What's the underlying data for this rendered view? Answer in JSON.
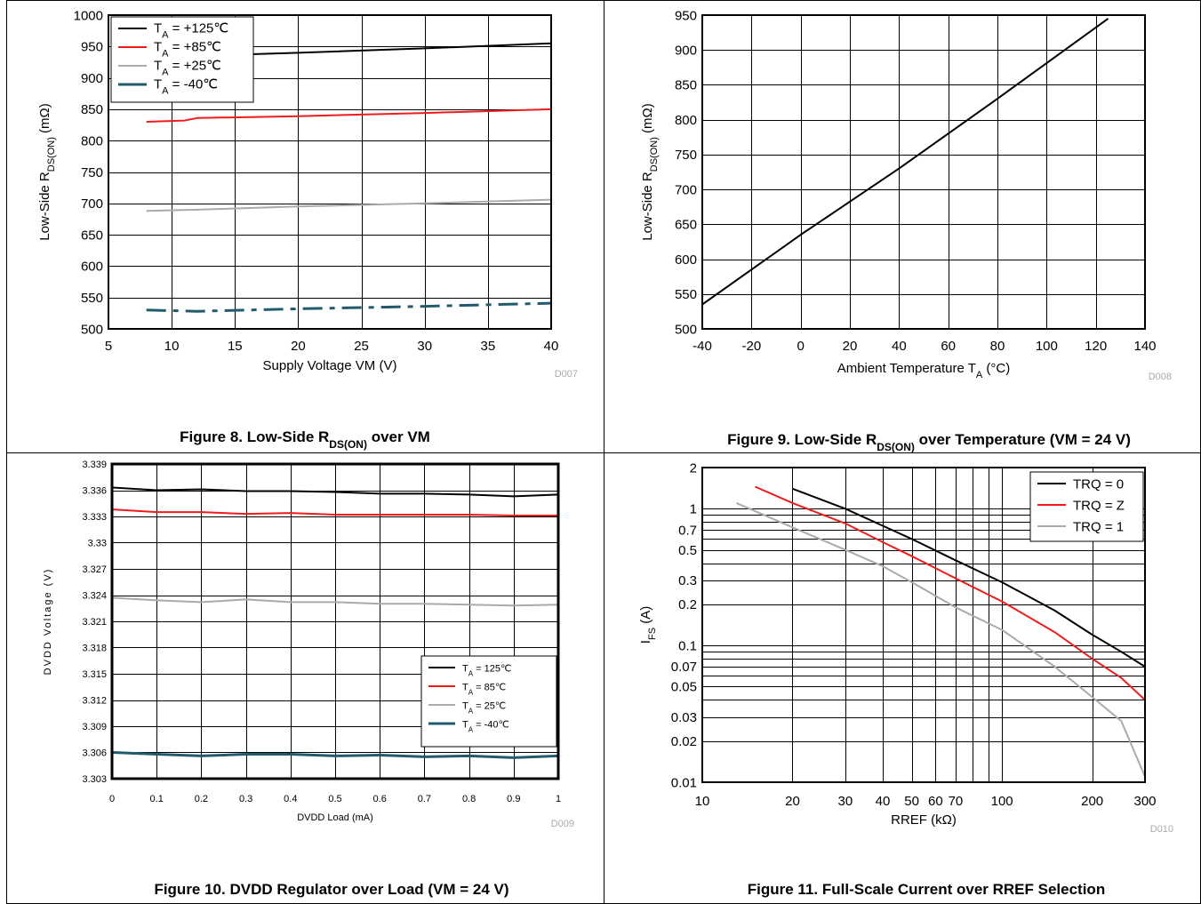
{
  "chart_data": [
    {
      "type": "line",
      "caption": {
        "prefix": "Figure 8. Low-Side R",
        "sub": "DS(ON)",
        "suffix": " over VM"
      },
      "ylabel": {
        "prefix": "Low-Side R",
        "sub": "DS(ON)",
        "suffix": " (mΩ)"
      },
      "xlabel": "Supply Voltage VM (V)",
      "code": "D007",
      "xlim": [
        5,
        40
      ],
      "ylim": [
        500,
        1000
      ],
      "x_ticks": [
        "5",
        "10",
        "15",
        "20",
        "25",
        "30",
        "35",
        "40"
      ],
      "y_ticks": [
        "500",
        "550",
        "600",
        "650",
        "700",
        "750",
        "800",
        "850",
        "900",
        "950",
        "1000"
      ],
      "grid": true,
      "legend_position": "top-left",
      "series": [
        {
          "name": "T_A = +125℃",
          "label_prefix": "T",
          "label_sub": "A",
          "label_suffix": " = +125℃",
          "color": "#000000",
          "x": [
            8,
            12,
            20,
            30,
            40
          ],
          "y": [
            930,
            935,
            940,
            947,
            955
          ]
        },
        {
          "name": "T_A = +85℃",
          "label_prefix": "T",
          "label_sub": "A",
          "label_suffix": " = +85℃",
          "color": "#ee1c1c",
          "x": [
            8,
            11,
            12,
            20,
            30,
            40
          ],
          "y": [
            830,
            832,
            836,
            839,
            844,
            850
          ]
        },
        {
          "name": "T_A = +25℃",
          "label_prefix": "T",
          "label_sub": "A",
          "label_suffix": " = +25℃",
          "color": "#aaaaaa",
          "x": [
            8,
            12,
            20,
            30,
            40
          ],
          "y": [
            688,
            690,
            695,
            700,
            706
          ]
        },
        {
          "name": "T_A = -40℃",
          "label_prefix": "T",
          "label_sub": "A",
          "label_suffix": " = -40℃",
          "color": "#215a6d",
          "dash": "dashdot",
          "x": [
            8,
            12,
            20,
            30,
            40
          ],
          "y": [
            530,
            528,
            532,
            536,
            541
          ]
        }
      ]
    },
    {
      "type": "line",
      "caption": {
        "prefix": "Figure 9. Low-Side R",
        "sub": "DS(ON)",
        "suffix": " over Temperature (VM = 24 V)"
      },
      "ylabel": {
        "prefix": "Low-Side R",
        "sub": "DS(ON)",
        "suffix": " (mΩ)"
      },
      "xlabel": {
        "prefix": "Ambient Temperature T",
        "sub": "A",
        "suffix": " (°C)"
      },
      "code": "D008",
      "xlim": [
        -40,
        140
      ],
      "ylim": [
        500,
        950
      ],
      "x_ticks": [
        "-40",
        "-20",
        "0",
        "20",
        "40",
        "60",
        "80",
        "100",
        "120",
        "140"
      ],
      "y_ticks": [
        "500",
        "550",
        "600",
        "650",
        "700",
        "750",
        "800",
        "850",
        "900",
        "950"
      ],
      "grid": true,
      "series": [
        {
          "color": "#000000",
          "x": [
            -40,
            0,
            40,
            80,
            125
          ],
          "y": [
            535,
            635,
            730,
            830,
            945
          ]
        }
      ]
    },
    {
      "type": "line",
      "caption": {
        "text": "Figure 10. DVDD Regulator over Load (VM = 24 V)"
      },
      "ylabel": "DVDD Voltage (V)",
      "xlabel": "DVDD Load (mA)",
      "code": "D009",
      "xlim": [
        0,
        1
      ],
      "ylim": [
        3.303,
        3.339
      ],
      "x_ticks": [
        "0",
        "0.1",
        "0.2",
        "0.3",
        "0.4",
        "0.5",
        "0.6",
        "0.7",
        "0.8",
        "0.9",
        "1"
      ],
      "y_ticks": [
        "3.303",
        "3.306",
        "3.309",
        "3.312",
        "3.315",
        "3.318",
        "3.321",
        "3.324",
        "3.327",
        "3.33",
        "3.333",
        "3.336",
        "3.339"
      ],
      "grid": true,
      "legend_position": "bottom-right",
      "series": [
        {
          "name": "T_A = 125℃",
          "label_prefix": "T",
          "label_sub": "A",
          "label_suffix": " = 125℃",
          "color": "#000000",
          "x": [
            0,
            0.1,
            0.2,
            0.3,
            0.4,
            0.5,
            0.6,
            0.7,
            0.8,
            0.9,
            1
          ],
          "y": [
            3.3363,
            3.336,
            3.3361,
            3.3359,
            3.3359,
            3.3358,
            3.3356,
            3.3356,
            3.3355,
            3.3353,
            3.3355
          ]
        },
        {
          "name": "T_A = 85℃",
          "label_prefix": "T",
          "label_sub": "A",
          "label_suffix": " = 85℃",
          "color": "#ee1c1c",
          "x": [
            0,
            0.1,
            0.2,
            0.3,
            0.4,
            0.5,
            0.6,
            0.7,
            0.8,
            0.9,
            1
          ],
          "y": [
            3.3338,
            3.3335,
            3.3335,
            3.3333,
            3.3334,
            3.3332,
            3.3332,
            3.3332,
            3.3332,
            3.3331,
            3.3331
          ]
        },
        {
          "name": "T_A = 25℃",
          "label_prefix": "T",
          "label_sub": "A",
          "label_suffix": " = 25℃",
          "color": "#aaaaaa",
          "x": [
            0,
            0.1,
            0.2,
            0.3,
            0.4,
            0.5,
            0.6,
            0.7,
            0.8,
            0.9,
            1
          ],
          "y": [
            3.3237,
            3.3234,
            3.3232,
            3.3235,
            3.3232,
            3.3232,
            3.323,
            3.323,
            3.3229,
            3.3228,
            3.3229
          ]
        },
        {
          "name": "T_A = -40℃",
          "label_prefix": "T",
          "label_sub": "A",
          "label_suffix": " = -40℃",
          "color": "#215a6d",
          "x": [
            0,
            0.1,
            0.2,
            0.3,
            0.4,
            0.5,
            0.6,
            0.7,
            0.8,
            0.9,
            1
          ],
          "y": [
            3.306,
            3.3058,
            3.3056,
            3.3058,
            3.3058,
            3.3056,
            3.3057,
            3.3055,
            3.3056,
            3.3054,
            3.3056
          ]
        }
      ]
    },
    {
      "type": "line",
      "caption": {
        "text": "Figure 11. Full-Scale Current over RREF Selection"
      },
      "ylabel": {
        "prefix": "I",
        "sub": "FS",
        "suffix": " (A)"
      },
      "xlabel": "RREF (kΩ)",
      "code": "D010",
      "x_scale": "log",
      "y_scale": "log",
      "xlim": [
        10,
        300
      ],
      "ylim": [
        0.01,
        2
      ],
      "x_ticks": [
        "10",
        "20",
        "30",
        "40",
        "50",
        "60",
        "70",
        "100",
        "200",
        "300"
      ],
      "y_ticks": [
        "0.01",
        "0.02",
        "0.03",
        "0.05",
        "0.07",
        "0.1",
        "0.2",
        "0.3",
        "0.5",
        "0.7",
        "1",
        "2"
      ],
      "grid": true,
      "legend_position": "top-right",
      "series": [
        {
          "name": "TRQ = 0",
          "color": "#000000",
          "x": [
            20,
            30,
            40,
            50,
            70,
            100,
            150,
            200,
            250,
            300
          ],
          "y": [
            1.4,
            1.0,
            0.75,
            0.6,
            0.42,
            0.29,
            0.18,
            0.12,
            0.09,
            0.07
          ]
        },
        {
          "name": "TRQ = Z",
          "color": "#ee1c1c",
          "x": [
            15,
            20,
            30,
            40,
            50,
            70,
            100,
            150,
            200,
            250,
            300
          ],
          "y": [
            1.45,
            1.1,
            0.78,
            0.57,
            0.45,
            0.31,
            0.21,
            0.125,
            0.08,
            0.058,
            0.04
          ]
        },
        {
          "name": "TRQ = 1",
          "color": "#aaaaaa",
          "x": [
            13,
            20,
            30,
            40,
            50,
            70,
            100,
            150,
            200,
            250,
            300
          ],
          "y": [
            1.1,
            0.73,
            0.5,
            0.38,
            0.29,
            0.19,
            0.13,
            0.07,
            0.042,
            0.028,
            0.011
          ]
        }
      ]
    }
  ]
}
